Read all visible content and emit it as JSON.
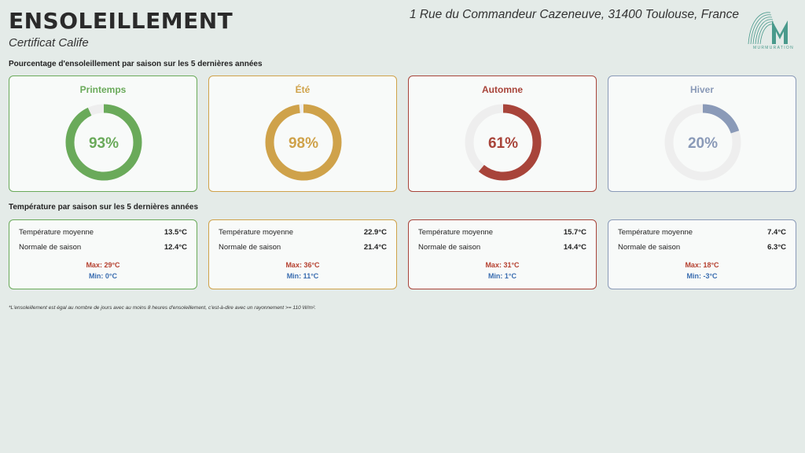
{
  "header": {
    "title": "ENSOLEILLEMENT",
    "subtitle": "Certificat Calife",
    "address": "1 Rue du Commandeur Cazeneuve, 31400 Toulouse, France",
    "logo_text": "MURMURATION"
  },
  "sunshine": {
    "section_title": "Pourcentage d'ensoleillement par saison sur les 5 dernières années",
    "seasons": [
      {
        "label": "Printemps",
        "value": 93,
        "value_text": "93%",
        "color": "#6aaa5a"
      },
      {
        "label": "Été",
        "value": 98,
        "value_text": "98%",
        "color": "#cfa24a"
      },
      {
        "label": "Automne",
        "value": 61,
        "value_text": "61%",
        "color": "#a8443a"
      },
      {
        "label": "Hiver",
        "value": 20,
        "value_text": "20%",
        "color": "#8a9ab8"
      }
    ]
  },
  "temperature": {
    "section_title": "Température par saison sur les 5 dernières années",
    "avg_label": "Température moyenne",
    "normal_label": "Normale de saison",
    "seasons": [
      {
        "avg": "13.5°C",
        "normal": "12.4°C",
        "max": "Max: 29°C",
        "min": "Min: 0°C"
      },
      {
        "avg": "22.9°C",
        "normal": "21.4°C",
        "max": "Max: 36°C",
        "min": "Min: 11°C"
      },
      {
        "avg": "15.7°C",
        "normal": "14.4°C",
        "max": "Max: 31°C",
        "min": "Min: 1°C"
      },
      {
        "avg": "7.4°C",
        "normal": "6.3°C",
        "max": "Max: 18°C",
        "min": "Min: -3°C"
      }
    ]
  },
  "footnote": "*L'ensoleillement est égal au nombre de jours avec au moins 8 heures d'ensoleillement, c'est-à-dire avec un rayonnement >= 110 W/m².",
  "track_color": "#eeeeee"
}
